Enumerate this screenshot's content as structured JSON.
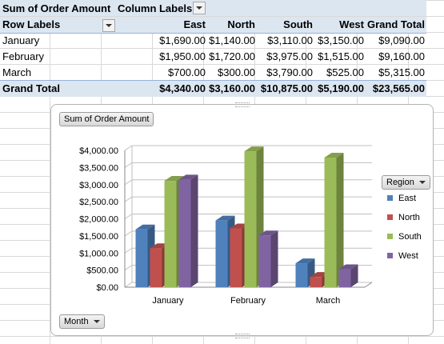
{
  "pivot": {
    "title": "Sum of Order Amount",
    "column_labels": "Column Labels",
    "row_labels": "Row Labels",
    "columns": [
      "East",
      "North",
      "South",
      "West",
      "Grand Total"
    ],
    "rows": [
      {
        "label": "January",
        "values": [
          "$1,690.00",
          "$1,140.00",
          "$3,110.00",
          "$3,150.00",
          "$9,090.00"
        ]
      },
      {
        "label": "February",
        "values": [
          "$1,950.00",
          "$1,720.00",
          "$3,975.00",
          "$1,515.00",
          "$9,160.00"
        ]
      },
      {
        "label": "March",
        "values": [
          "$700.00",
          "$300.00",
          "$3,790.00",
          "$525.00",
          "$5,315.00"
        ]
      }
    ],
    "grand_total": {
      "label": "Grand Total",
      "values": [
        "$4,340.00",
        "$3,160.00",
        "$10,875.00",
        "$5,190.00",
        "$23,565.00"
      ]
    }
  },
  "chart_buttons": {
    "value_field": "Sum of Order Amount",
    "axis_field": "Month",
    "legend_field": "Region"
  },
  "chart_data": {
    "type": "bar",
    "categories": [
      "January",
      "February",
      "March"
    ],
    "series": [
      {
        "name": "East",
        "color": "#4f81bd",
        "values": [
          1690,
          1950,
          700
        ]
      },
      {
        "name": "North",
        "color": "#c0504d",
        "values": [
          1140,
          1720,
          300
        ]
      },
      {
        "name": "South",
        "color": "#9bbb59",
        "values": [
          3110,
          3975,
          3790
        ]
      },
      {
        "name": "West",
        "color": "#8064a2",
        "values": [
          3150,
          1515,
          525
        ]
      }
    ],
    "yticks": [
      "$0.00",
      "$500.00",
      "$1,000.00",
      "$1,500.00",
      "$2,000.00",
      "$2,500.00",
      "$3,000.00",
      "$3,500.00",
      "$4,000.00"
    ],
    "ylim": [
      0,
      4000
    ],
    "legend_position": "right",
    "grid": true
  }
}
